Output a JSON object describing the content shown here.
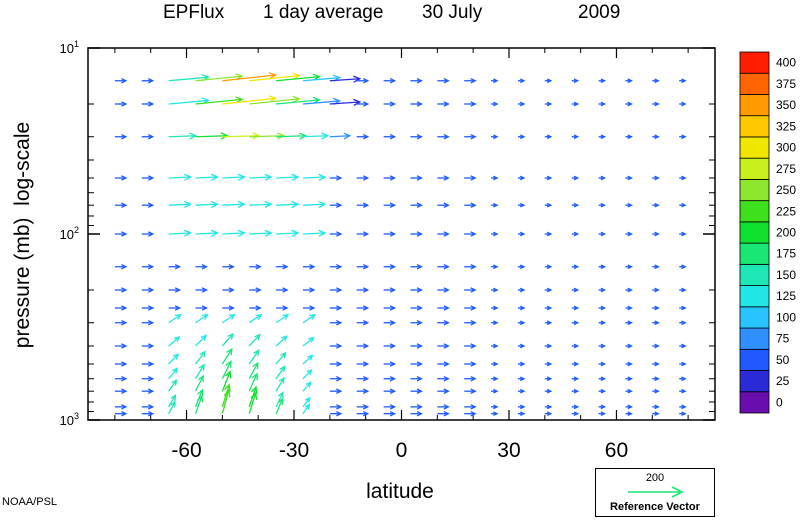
{
  "chart_data": {
    "type": "vector",
    "title_parts": [
      "EPFlux",
      "1 day average",
      "30 July",
      "2009"
    ],
    "xlabel": "latitude",
    "ylabel": "pressure (mb)  log-scale",
    "x_ticks": [
      -60,
      -30,
      0,
      30,
      60
    ],
    "x_tick_labels": [
      "-60",
      "-30",
      "0",
      "30",
      "60"
    ],
    "xlim": [
      -87.5,
      87.5
    ],
    "yscale": "log",
    "ylim": [
      1000,
      10
    ],
    "y_tick_labels": [
      {
        "base": "10",
        "exp": "1",
        "value": 10
      },
      {
        "base": "10",
        "exp": "2",
        "value": 100
      },
      {
        "base": "10",
        "exp": "3",
        "value": 1000
      }
    ],
    "colorbar": {
      "labels": [
        "0",
        "25",
        "50",
        "75",
        "100",
        "125",
        "150",
        "175",
        "200",
        "225",
        "250",
        "275",
        "300",
        "325",
        "350",
        "375",
        "400"
      ],
      "colors": [
        "#6a0dad",
        "#2a2ad6",
        "#1e5aff",
        "#2f8fff",
        "#27c4ff",
        "#22e6e6",
        "#1ee6b4",
        "#19e673",
        "#10e030",
        "#3ee01e",
        "#8ee62e",
        "#c8f01e",
        "#f0e600",
        "#ffc800",
        "#ff9a00",
        "#ff6400",
        "#ff1e00"
      ]
    },
    "reference_vector": {
      "value": "200",
      "label": "Reference Vector",
      "color": "#19e673"
    },
    "credit": "NOAA/PSL"
  }
}
